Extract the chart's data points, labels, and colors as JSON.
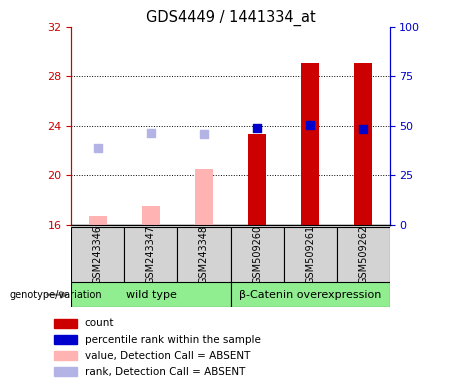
{
  "title": "GDS4449 / 1441334_at",
  "samples": [
    "GSM243346",
    "GSM243347",
    "GSM243348",
    "GSM509260",
    "GSM509261",
    "GSM509262"
  ],
  "ylim_left": [
    16,
    32
  ],
  "ylim_right": [
    0,
    100
  ],
  "yticks_left": [
    16,
    20,
    24,
    28,
    32
  ],
  "yticks_right": [
    0,
    25,
    50,
    75,
    100
  ],
  "count_bars": {
    "values": [
      null,
      null,
      null,
      23.3,
      29.1,
      29.1
    ],
    "color": "#cc0000"
  },
  "absent_value_bars": {
    "values": [
      16.7,
      17.5,
      20.5,
      null,
      null,
      null
    ],
    "color": "#ffb3b3"
  },
  "percentile_rank_dots": {
    "values": [
      null,
      null,
      null,
      23.85,
      24.05,
      23.75
    ],
    "color": "#0000cc"
  },
  "absent_rank_dots": {
    "values": [
      22.2,
      23.4,
      23.3,
      null,
      null,
      null
    ],
    "color": "#b3b3e6"
  },
  "bar_width": 0.35,
  "dot_size": 35,
  "plot_bg_color": "#ffffff",
  "group_colors": [
    "#90ee90",
    "#90ee90"
  ],
  "sample_box_color": "#d3d3d3",
  "left_axis_color": "#cc0000",
  "right_axis_color": "#0000cc",
  "grid_yticks": [
    20,
    24,
    28
  ],
  "legend_items": [
    {
      "label": "count",
      "color": "#cc0000"
    },
    {
      "label": "percentile rank within the sample",
      "color": "#0000cc"
    },
    {
      "label": "value, Detection Call = ABSENT",
      "color": "#ffb3b3"
    },
    {
      "label": "rank, Detection Call = ABSENT",
      "color": "#b3b3e6"
    }
  ],
  "wildtype_label": "wild type",
  "betacatenin_label": "β-Catenin overexpression",
  "genotype_label": "genotype/variation"
}
